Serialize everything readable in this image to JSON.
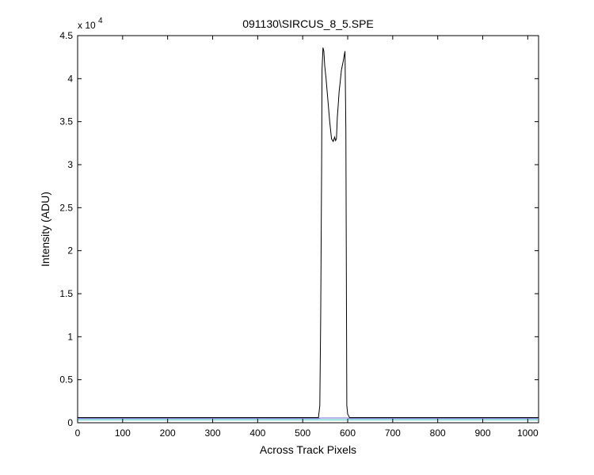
{
  "chart_data": {
    "type": "line",
    "title": "091130\\SIRCUS_8_5.SPE",
    "xlabel": "Across Track Pixels",
    "ylabel": "Intensity (ADU)",
    "xlim": [
      0,
      1024
    ],
    "ylim": [
      0,
      45000
    ],
    "y_scale_factor_label": "x 10",
    "y_scale_factor_exponent": "4",
    "x_ticks": [
      0,
      100,
      200,
      300,
      400,
      500,
      600,
      700,
      800,
      900,
      1000
    ],
    "x_tick_labels": [
      "0",
      "100",
      "200",
      "300",
      "400",
      "500",
      "600",
      "700",
      "800",
      "900",
      "1000"
    ],
    "y_ticks": [
      0,
      5000,
      10000,
      15000,
      20000,
      25000,
      30000,
      35000,
      40000,
      45000
    ],
    "y_tick_labels": [
      "0",
      "0.5",
      "1",
      "1.5",
      "2",
      "2.5",
      "3",
      "3.5",
      "4",
      "4.5"
    ],
    "grid": false,
    "legend": "none",
    "series": [
      {
        "color": "#000000",
        "x": [
          0,
          535,
          538,
          540,
          542,
          543,
          545,
          547,
          549,
          552,
          556,
          560,
          564,
          568,
          571,
          573,
          575,
          577,
          579,
          581,
          583,
          586,
          590,
          594,
          596,
          598,
          600,
          602,
          604,
          1024
        ],
        "y": [
          600,
          600,
          2000,
          12000,
          30000,
          41000,
          43600,
          43200,
          41500,
          40000,
          37500,
          35000,
          33000,
          32700,
          33200,
          32800,
          33000,
          35500,
          37000,
          38500,
          39500,
          41000,
          42000,
          43200,
          34000,
          2000,
          1000,
          800,
          600,
          600
        ]
      },
      {
        "color": "#3cc4c4",
        "x": [
          0,
          538,
          540,
          600,
          602,
          1024
        ],
        "y": [
          350,
          350,
          350,
          350,
          350,
          350
        ]
      },
      {
        "color": "#6a6ad0",
        "x": [
          0,
          535,
          540,
          600,
          604,
          1024
        ],
        "y": [
          500,
          500,
          550,
          550,
          500,
          500
        ]
      }
    ]
  }
}
